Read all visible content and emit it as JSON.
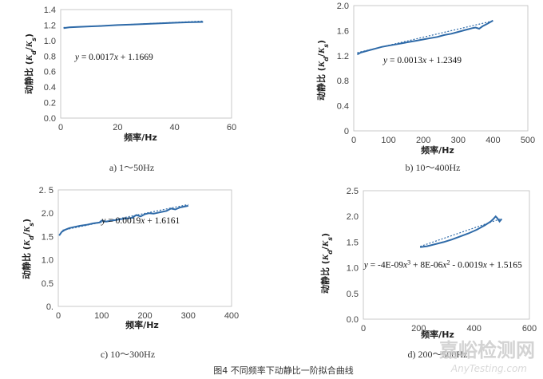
{
  "figure_caption": "图4   不同频率下动静比一阶拟合曲线",
  "watermark": {
    "cn": "嘉峪检测网",
    "en": "AnyTesting.com"
  },
  "line_color": "#2e6aa8",
  "chart_data": [
    {
      "type": "line",
      "caption": "a)  1～50Hz",
      "xlabel": "频率/Hz",
      "ylabel_main": "动静比 (",
      "ylabel_sym1": "K",
      "ylabel_sub1": "d",
      "ylabel_slash": "/",
      "ylabel_sym2": "K",
      "ylabel_sub2": "s",
      "ylabel_end": ")",
      "xlim": [
        0,
        60
      ],
      "ylim": [
        0,
        1.4
      ],
      "xticks": [
        "0",
        "20",
        "40",
        "60"
      ],
      "yticks": [
        "0.0",
        "0.2",
        "0.4",
        "0.6",
        "0.8",
        "1.0",
        "1.2",
        "1.4"
      ],
      "xtick_values": [
        0,
        20,
        40,
        60
      ],
      "ytick_values": [
        0,
        0.2,
        0.4,
        0.6,
        0.8,
        1.0,
        1.2,
        1.4
      ],
      "equation": {
        "a": "y",
        "b": " = 0.0017",
        "c": "x",
        "d": " + 1.1669"
      },
      "equation_anchor": [
        5,
        0.75
      ],
      "series": [
        {
          "x": [
            1,
            3,
            6,
            10,
            15,
            20,
            25,
            30,
            35,
            40,
            45,
            50
          ],
          "y": [
            1.16,
            1.17,
            1.176,
            1.183,
            1.19,
            1.2,
            1.207,
            1.215,
            1.222,
            1.23,
            1.236,
            1.24
          ]
        }
      ],
      "trend": {
        "x": [
          1,
          50
        ],
        "y": [
          1.1686,
          1.2519
        ]
      }
    },
    {
      "type": "line",
      "caption": "b)  10～400Hz",
      "xlabel": "频率/Hz",
      "ylabel_main": "动静比 (",
      "ylabel_sym1": "K",
      "ylabel_sub1": "d",
      "ylabel_slash": "/",
      "ylabel_sym2": "K",
      "ylabel_sub2": "s",
      "ylabel_end": ")",
      "xlim": [
        0,
        500
      ],
      "ylim": [
        0,
        2.0
      ],
      "xticks": [
        "0",
        "100",
        "200",
        "300",
        "400",
        "500"
      ],
      "yticks": [
        "0",
        "0.4",
        "0.8",
        "1.2",
        "1.6",
        "2.0"
      ],
      "xtick_values": [
        0,
        100,
        200,
        300,
        400,
        500
      ],
      "ytick_values": [
        0,
        0.4,
        0.8,
        1.2,
        1.6,
        2.0
      ],
      "equation": {
        "a": "y",
        "b": " = 0.0013",
        "c": "x",
        "d": " + 1.2349"
      },
      "equation_anchor": [
        85,
        1.08
      ],
      "series": [
        {
          "x": [
            10,
            20,
            40,
            60,
            80,
            100,
            120,
            140,
            160,
            180,
            200,
            220,
            240,
            260,
            280,
            300,
            320,
            340,
            350,
            360,
            370,
            380,
            390,
            400
          ],
          "y": [
            1.22,
            1.25,
            1.28,
            1.31,
            1.34,
            1.36,
            1.38,
            1.4,
            1.42,
            1.44,
            1.46,
            1.48,
            1.5,
            1.53,
            1.55,
            1.58,
            1.61,
            1.64,
            1.65,
            1.63,
            1.67,
            1.7,
            1.73,
            1.76
          ]
        }
      ],
      "trend": {
        "x": [
          10,
          400
        ],
        "y": [
          1.2479,
          1.7549
        ]
      }
    },
    {
      "type": "line",
      "caption": "c)  10～300Hz",
      "xlabel": "频率/Hz",
      "ylabel_main": "动静比 (",
      "ylabel_sym1": "K",
      "ylabel_sub1": "d",
      "ylabel_slash": "/",
      "ylabel_sym2": "K",
      "ylabel_sub2": "s",
      "ylabel_end": ")",
      "xlim": [
        0,
        400
      ],
      "ylim": [
        0,
        2.5
      ],
      "xticks": [
        "0",
        "100",
        "200",
        "300",
        "400"
      ],
      "yticks": [
        "0.",
        "0.5",
        "1.0",
        "1.5",
        "2.0",
        "2. 5"
      ],
      "xtick_values": [
        0,
        100,
        200,
        300,
        400
      ],
      "ytick_values": [
        0,
        0.5,
        1.0,
        1.5,
        2.0,
        2.5
      ],
      "equation": {
        "a": "y",
        "b": " = 0.0019",
        "c": "x",
        "d": " + 1.6161"
      },
      "equation_anchor": [
        100,
        1.78
      ],
      "series": [
        {
          "x": [
            2,
            8,
            15,
            25,
            35,
            50,
            65,
            80,
            95,
            100,
            110,
            130,
            150,
            170,
            180,
            190,
            200,
            210,
            220,
            235,
            250,
            260,
            270,
            280,
            290,
            300
          ],
          "y": [
            1.52,
            1.6,
            1.64,
            1.68,
            1.7,
            1.73,
            1.75,
            1.78,
            1.8,
            1.84,
            1.82,
            1.85,
            1.88,
            1.9,
            1.96,
            1.93,
            1.98,
            2.0,
            1.99,
            2.02,
            2.05,
            2.1,
            2.08,
            2.12,
            2.14,
            2.16
          ]
        }
      ],
      "trend": {
        "x": [
          10,
          300
        ],
        "y": [
          1.6351,
          2.1861
        ]
      }
    },
    {
      "type": "line",
      "caption": "d)  200～500Hz",
      "xlabel": "频率/Hz",
      "ylabel_main": "动静比 (",
      "ylabel_sym1": "K",
      "ylabel_sub1": "d",
      "ylabel_slash": "/",
      "ylabel_sym2": "K",
      "ylabel_sub2": "s",
      "ylabel_end": ")",
      "xlim": [
        0,
        600
      ],
      "ylim": [
        0,
        2.5
      ],
      "xticks": [
        "0",
        "200",
        "400",
        "600"
      ],
      "yticks": [
        "0.0",
        "0.5",
        "1.0",
        "1.5",
        "2.0",
        "2.5"
      ],
      "xtick_values": [
        0,
        200,
        400,
        600
      ],
      "ytick_values": [
        0,
        0.5,
        1.0,
        1.5,
        2.0,
        2.5
      ],
      "equation": {
        "a": "y",
        "b": " = -4E-09",
        "c": "x",
        "sup1": "3",
        "e": " + 8E-06",
        "f": "x",
        "sup2": "2",
        "g": " - 0.0019",
        "h": "x",
        "i": " + 1.5165"
      },
      "equation_anchor": [
        2,
        1.0
      ],
      "series": [
        {
          "x": [
            205,
            230,
            260,
            290,
            320,
            350,
            380,
            410,
            440,
            460,
            470,
            478,
            485,
            492,
            500
          ],
          "y": [
            1.4,
            1.42,
            1.46,
            1.5,
            1.55,
            1.61,
            1.67,
            1.74,
            1.83,
            1.9,
            1.95,
            2.0,
            1.96,
            1.9,
            1.95
          ]
        }
      ],
      "trend": {
        "x": [
          205,
          500
        ],
        "y": [
          1.415,
          1.96
        ]
      }
    }
  ]
}
